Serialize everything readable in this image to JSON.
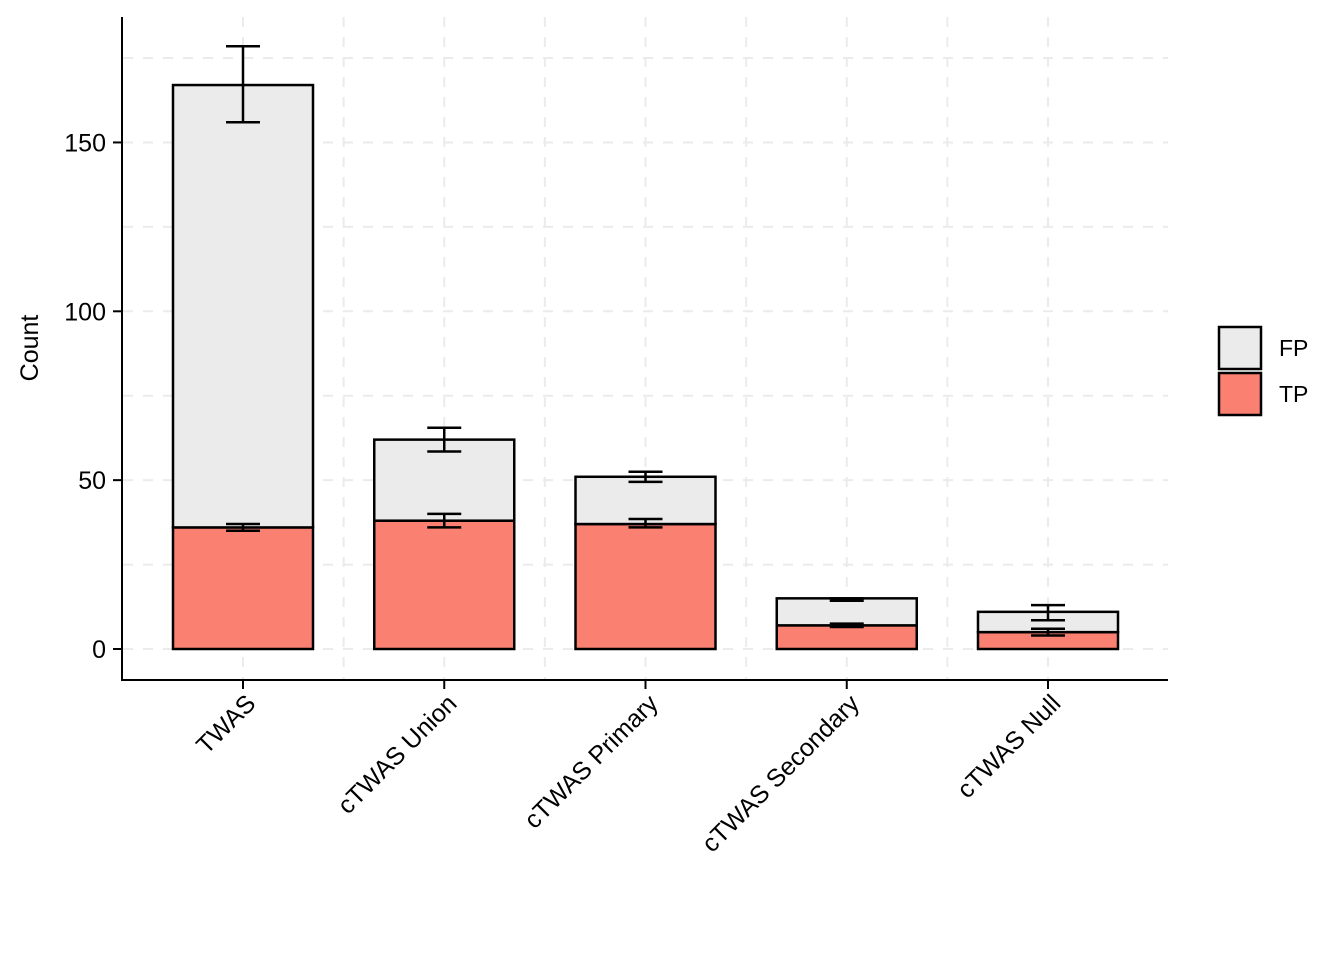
{
  "chart_data": {
    "type": "bar",
    "stacked": true,
    "title": "",
    "xlabel": "",
    "ylabel": "Count",
    "ylim": [
      -9,
      188
    ],
    "yticks": [
      0,
      50,
      100,
      150
    ],
    "categories": [
      "TWAS",
      "cTWAS Union",
      "cTWAS Primary",
      "cTWAS Secondary",
      "cTWAS Null"
    ],
    "series": [
      {
        "name": "TP",
        "color": "#FA8072",
        "values": [
          36,
          38,
          37,
          7,
          5
        ],
        "err_low": [
          35,
          36,
          36,
          6.5,
          4
        ],
        "err_high": [
          37,
          40,
          38.5,
          7.5,
          6
        ]
      },
      {
        "name": "FP",
        "color": "#EBEBEB",
        "values": [
          131,
          24,
          14,
          8,
          6
        ],
        "err_low": [
          156,
          58.5,
          49.5,
          14.3,
          8.5
        ],
        "err_high": [
          178.5,
          65.5,
          52.5,
          15,
          13
        ]
      }
    ],
    "legend": {
      "position": "right",
      "entries": [
        {
          "label": "FP",
          "color": "#EBEBEB"
        },
        {
          "label": "TP",
          "color": "#FA8072"
        }
      ]
    },
    "grid": true
  }
}
